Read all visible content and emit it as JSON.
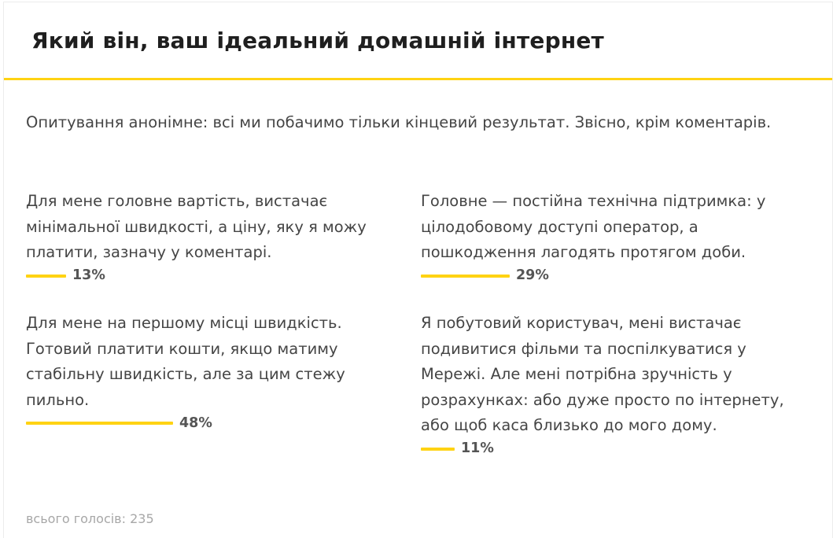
{
  "poll": {
    "title": "Який він, ваш ідеальний домашній інтернет",
    "description": "Опитування анонімне: всі ми побачимо тільки кінцевий результат. Звісно, крім коментарів.",
    "options": [
      {
        "text": "Для мене головне вартість, вистачає мінімальної швидкості, а ціну, яку я можу платити, зазначу у коментарі.",
        "percent_label": "13%",
        "percent": 13
      },
      {
        "text": "Головне — постійна технічна підтримка: у цілодобовому доступі оператор, а пошкодження лагодять протягом доби.",
        "percent_label": "29%",
        "percent": 29
      },
      {
        "text": "Для мене на першому місці швидкість. Готовий платити кошти, якщо матиму стабільну швидкість, але за цим стежу пильно.",
        "percent_label": "48%",
        "percent": 48
      },
      {
        "text": "Я побутовий користувач, мені вистачає подивитися фільми та поспілкуватися у Мережі. Але мені потрібна зручність у розрахунках: або дуже просто по інтернету, або щоб каса близько до мого дому.",
        "percent_label": "11%",
        "percent": 11
      }
    ],
    "total_votes": "всього голосів: 235",
    "colors": {
      "accent": "#ffd313",
      "text": "#454545",
      "muted": "#a7a7a7"
    }
  }
}
